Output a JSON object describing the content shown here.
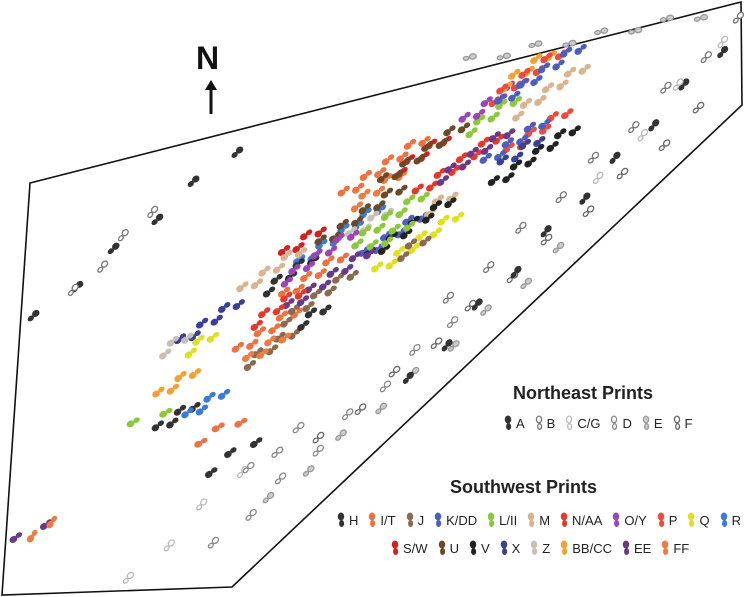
{
  "north_label": "N",
  "legend": {
    "northeast": {
      "title": "Northeast Prints",
      "items": [
        {
          "label": "A",
          "color": "#333333",
          "fill": "#333333"
        },
        {
          "label": "B",
          "color": "#777777",
          "fill": "#ffffff"
        },
        {
          "label": "C/G",
          "color": "#bbbbbb",
          "fill": "#ffffff"
        },
        {
          "label": "D",
          "color": "#888888",
          "fill": "#ffffff"
        },
        {
          "label": "E",
          "color": "#999999",
          "fill": "#cccccc"
        },
        {
          "label": "F",
          "color": "#666666",
          "fill": "#ffffff"
        }
      ]
    },
    "southwest": {
      "title": "Southwest Prints",
      "items": [
        {
          "label": "H",
          "color": "#333333"
        },
        {
          "label": "I/T",
          "color": "#f07040"
        },
        {
          "label": "J",
          "color": "#8b6a4f"
        },
        {
          "label": "K/DD",
          "color": "#4a5fc0"
        },
        {
          "label": "L/II",
          "color": "#8cc83c"
        },
        {
          "label": "M",
          "color": "#d9b48f"
        },
        {
          "label": "N/AA",
          "color": "#e8382a"
        },
        {
          "label": "O/Y",
          "color": "#9b45b8"
        },
        {
          "label": "P",
          "color": "#f04a3a"
        },
        {
          "label": "Q",
          "color": "#e0e020"
        },
        {
          "label": "R",
          "color": "#3a7bd5"
        },
        {
          "label": "S/W",
          "color": "#d62020"
        },
        {
          "label": "U",
          "color": "#6b4a2a"
        },
        {
          "label": "V",
          "color": "#222222"
        },
        {
          "label": "X",
          "color": "#3a3f9a"
        },
        {
          "label": "Z",
          "color": "#c8bfb5"
        },
        {
          "label": "BB/CC",
          "color": "#f5a030"
        },
        {
          "label": "EE",
          "color": "#6a3a8a"
        },
        {
          "label": "FF",
          "color": "#f07a40"
        }
      ]
    }
  }
}
